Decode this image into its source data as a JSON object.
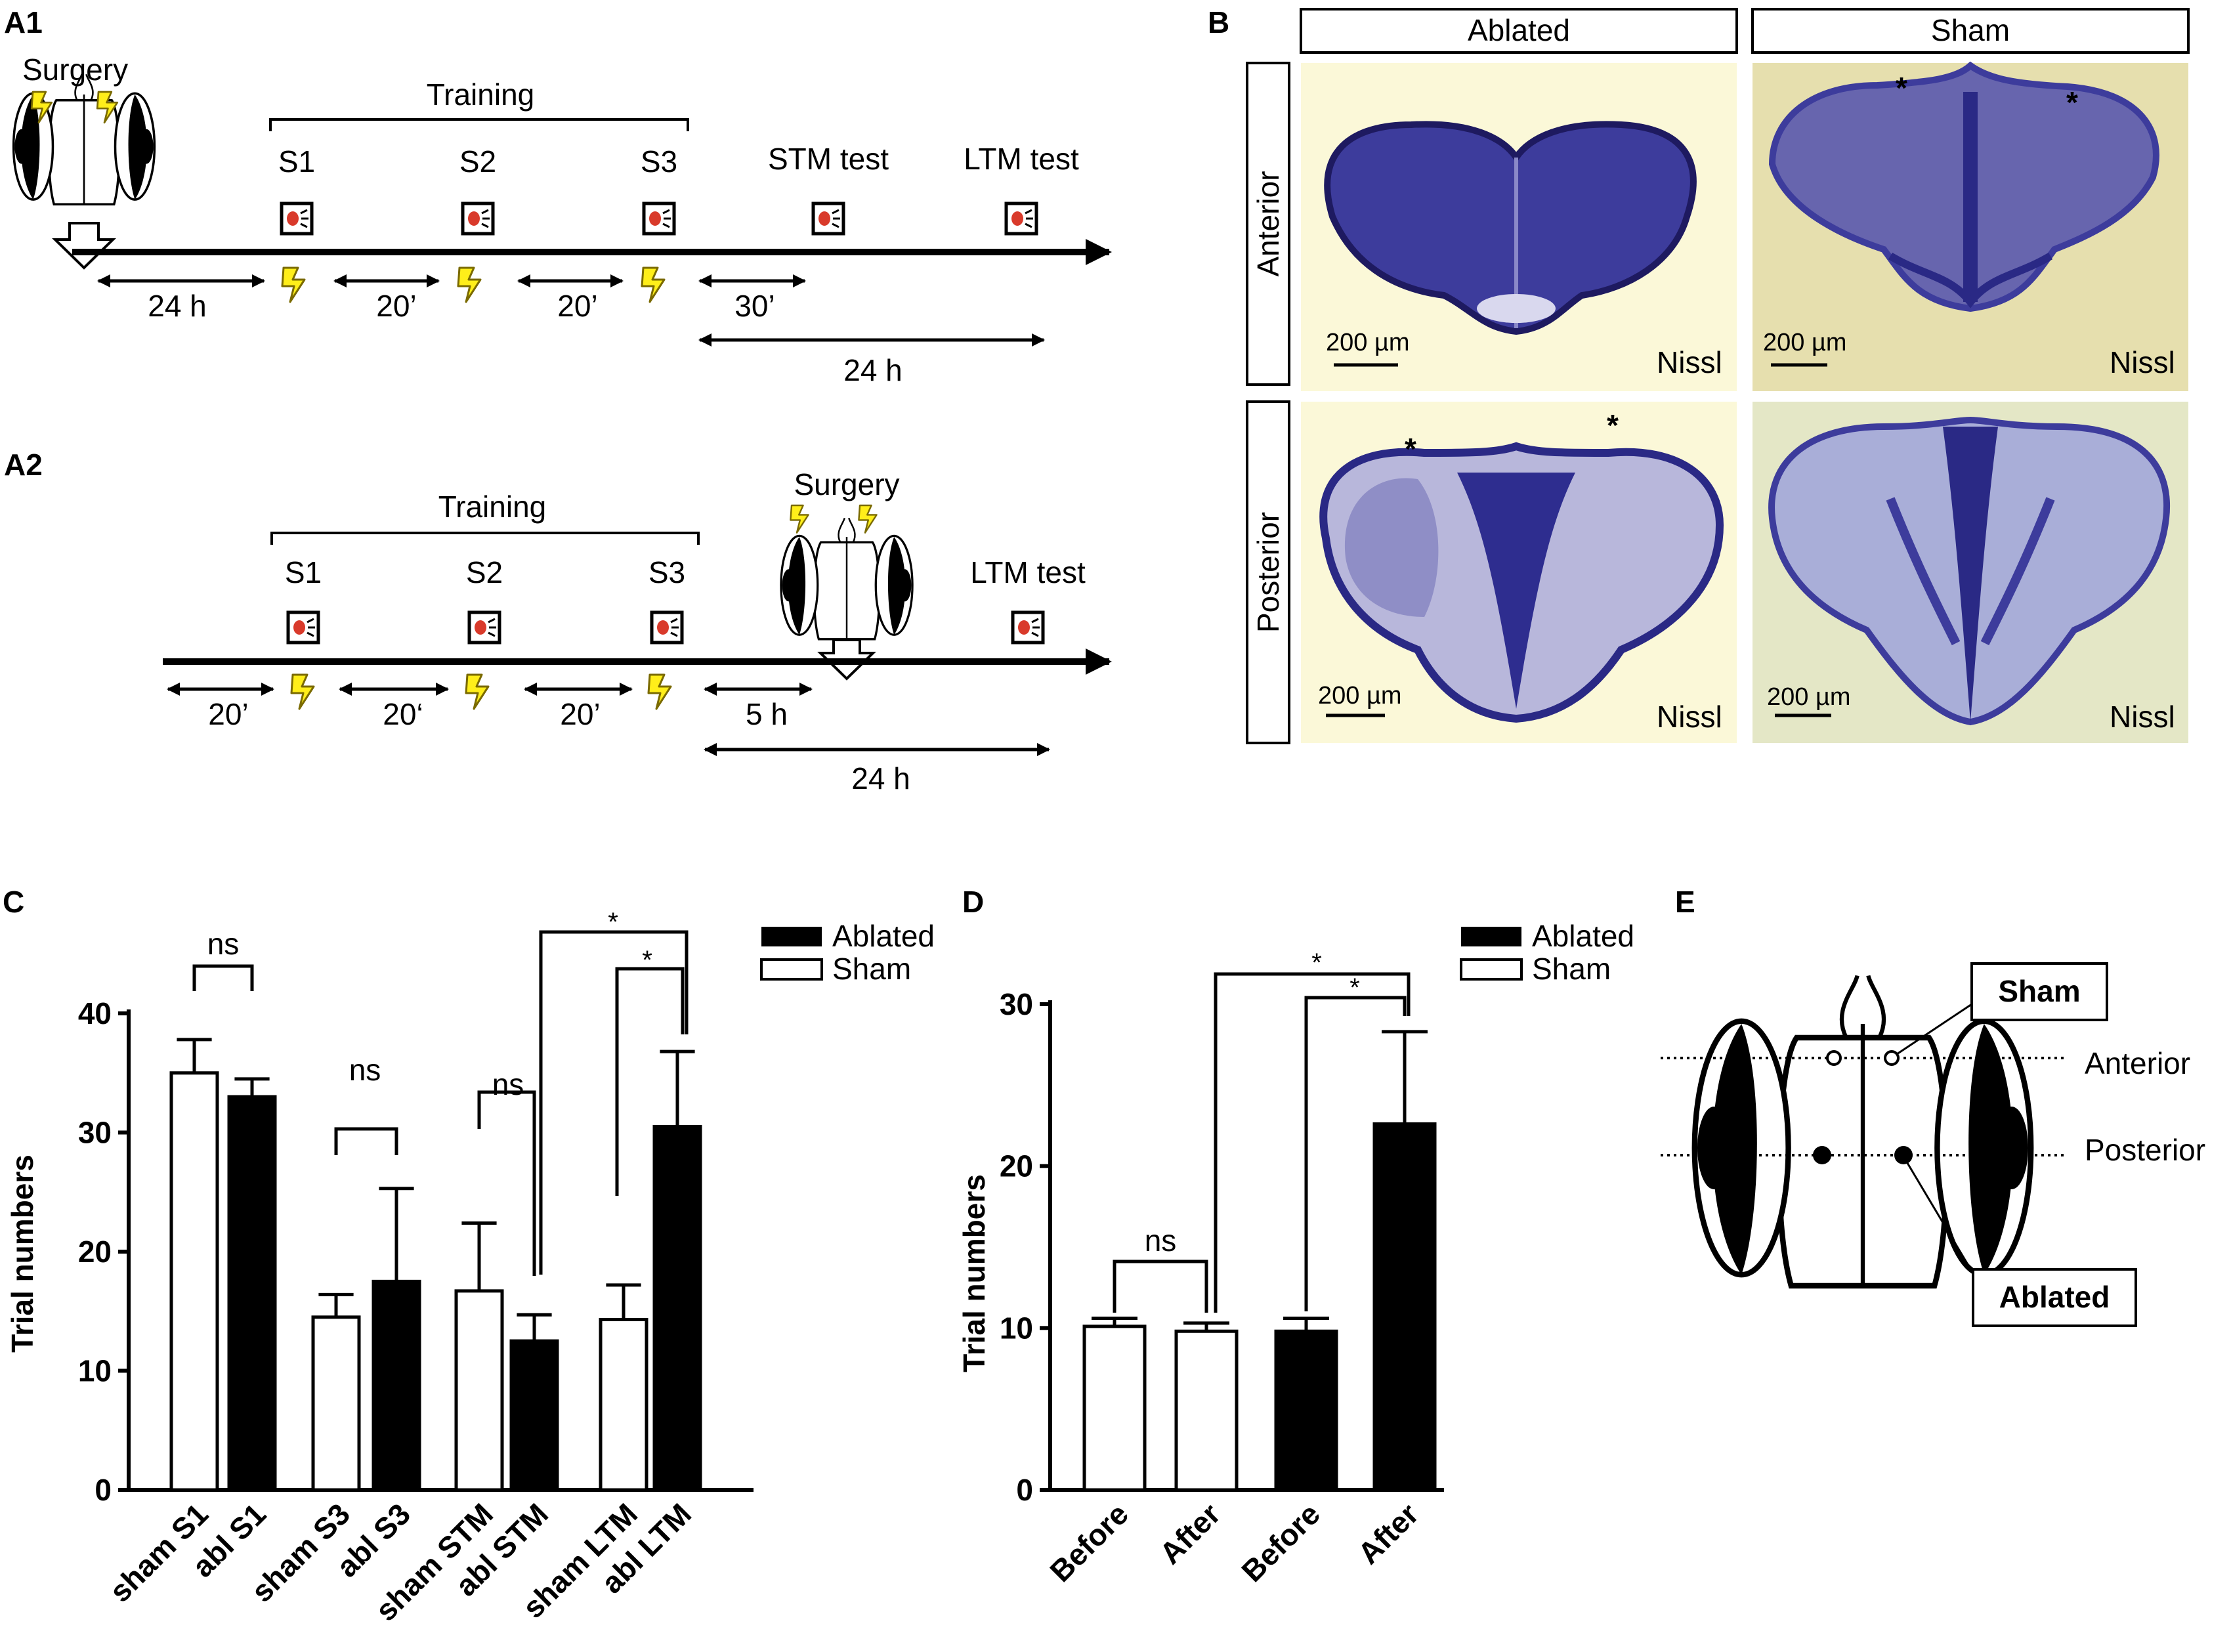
{
  "panel_labels": {
    "a1": "A1",
    "a2": "A2",
    "b": "B",
    "c": "C",
    "d": "D",
    "e": "E"
  },
  "panel_a1": {
    "surgery": "Surgery",
    "training": "Training",
    "s1": "S1",
    "s2": "S2",
    "s3": "S3",
    "stm_test": "STM test",
    "ltm_test": "LTM test",
    "int_24h": "24 h",
    "int_20a": "20’",
    "int_20b": "20’",
    "int_30": "30’",
    "int_24h_long": "24 h"
  },
  "panel_a2": {
    "surgery": "Surgery",
    "training": "Training",
    "s1": "S1",
    "s2": "S2",
    "s3": "S3",
    "ltm_test": "LTM test",
    "int_20a": "20’",
    "int_20b": "20‘",
    "int_20c": "20’",
    "int_5h": "5 h",
    "int_24h_long": "24 h"
  },
  "panel_b": {
    "col_ablated": "Ablated",
    "col_sham": "Sham",
    "row_anterior": "Anterior",
    "row_posterior": "Posterior",
    "scale": "200 µm",
    "stain": "Nissl",
    "asterisk": "*",
    "colors": {
      "ablated_bg": "#fbf8d8",
      "sham_bg": "#e6dfae",
      "tissue": "#3d3c9c"
    }
  },
  "panel_c": {
    "legend_ablated": "Ablated",
    "legend_sham": "Sham",
    "sig_ns": "ns",
    "sig_star": "*",
    "colors": {
      "ablated": "#000000",
      "sham": "#ffffff"
    }
  },
  "panel_d": {
    "legend_ablated": "Ablated",
    "legend_sham": "Sham",
    "sig_ns": "ns",
    "sig_star": "*",
    "colors": {
      "ablated": "#000000",
      "sham": "#ffffff"
    }
  },
  "panel_e": {
    "sham": "Sham",
    "ablated": "Ablated",
    "anterior": "Anterior",
    "posterior": "Posterior"
  },
  "chart_data": [
    {
      "type": "bar",
      "ylabel": "Trial numbers",
      "ylim": [
        0,
        40
      ],
      "yticks": [
        "0",
        "10",
        "20",
        "30",
        "40"
      ],
      "categories": [
        "sham S1",
        "abl S1",
        "sham S3",
        "abl S3",
        "sham STM",
        "abl STM",
        "sham LTM",
        "abl LTM"
      ],
      "series": [
        {
          "name": "Sham",
          "values": [
            35,
            null,
            14.5,
            null,
            16.7,
            null,
            14.3,
            null
          ]
        },
        {
          "name": "Ablated",
          "values": [
            null,
            33,
            null,
            17.5,
            null,
            12.5,
            null,
            30.5
          ]
        }
      ],
      "values": [
        35,
        33,
        14.5,
        17.5,
        16.7,
        12.5,
        14.3,
        30.5
      ],
      "errors": [
        2.8,
        1.5,
        1.9,
        7.8,
        5.7,
        2.2,
        2.9,
        6.3
      ],
      "legend": "top-right"
    },
    {
      "type": "bar",
      "ylabel": "Trial numbers",
      "ylim": [
        0,
        30
      ],
      "yticks": [
        "0",
        "10",
        "20",
        "30"
      ],
      "categories": [
        "Before",
        "After",
        "Before",
        "After"
      ],
      "series": [
        {
          "name": "Sham",
          "values": [
            10.1,
            9.8,
            null,
            null
          ]
        },
        {
          "name": "Ablated",
          "values": [
            null,
            null,
            9.8,
            22.6
          ]
        }
      ],
      "values": [
        10.1,
        9.8,
        9.8,
        22.6
      ],
      "errors": [
        0.5,
        0.5,
        0.8,
        5.7
      ],
      "legend": "top-right"
    }
  ]
}
